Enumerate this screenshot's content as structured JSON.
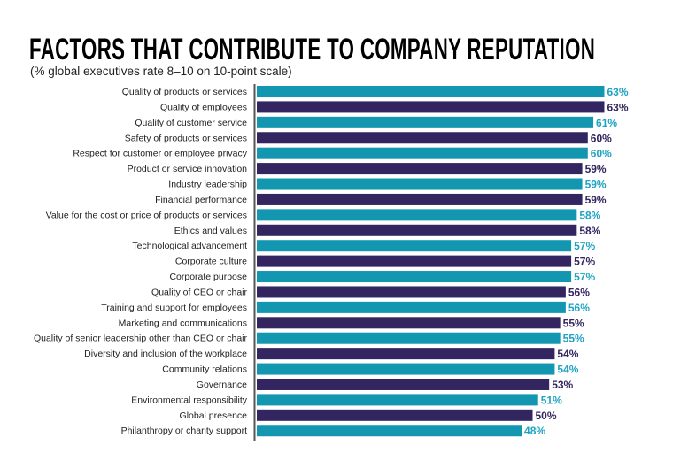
{
  "chart_data": {
    "type": "bar",
    "orientation": "horizontal",
    "title": "FACTORS THAT CONTRIBUTE TO COMPANY REPUTATION",
    "subtitle": "(% global executives rate 8–10 on 10-point scale)",
    "xlabel": "",
    "ylabel": "",
    "xlim": [
      0,
      63
    ],
    "grid": false,
    "value_suffix": "%",
    "colors": [
      "#1397B1",
      "#33255F"
    ],
    "categories": [
      "Quality of products or services",
      "Quality of employees",
      "Quality of customer service",
      "Safety of products or services",
      "Respect for customer or employee privacy",
      "Product or service innovation",
      "Industry leadership",
      "Financial performance",
      "Value for the cost or price of products or services",
      "Ethics and values",
      "Technological advancement",
      "Corporate culture",
      "Corporate purpose",
      "Quality of CEO or chair",
      "Training and support for employees",
      "Marketing and communications",
      "Quality of senior leadership other than CEO or chair",
      "Diversity and inclusion of the workplace",
      "Community relations",
      "Governance",
      "Environmental responsibility",
      "Global presence",
      "Philanthropy or charity support"
    ],
    "values": [
      63,
      63,
      61,
      60,
      60,
      59,
      59,
      59,
      58,
      58,
      57,
      57,
      57,
      56,
      56,
      55,
      55,
      54,
      54,
      53,
      51,
      50,
      48
    ],
    "labels": [
      "63%",
      "63%",
      "61%",
      "60%",
      "60%",
      "59%",
      "59%",
      "59%",
      "58%",
      "58%",
      "57%",
      "57%",
      "57%",
      "56%",
      "56%",
      "55%",
      "55%",
      "54%",
      "54%",
      "53%",
      "51%",
      "50%",
      "48%"
    ]
  }
}
